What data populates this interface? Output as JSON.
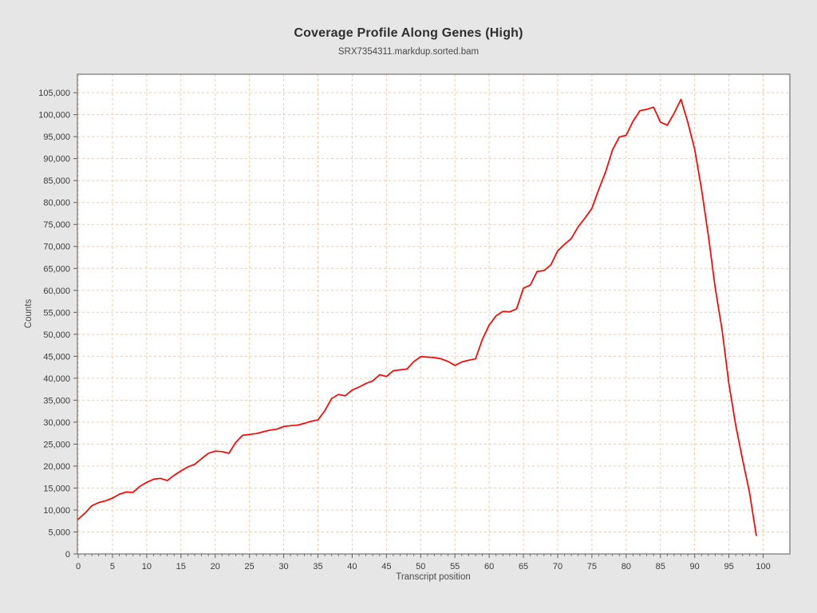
{
  "page": {
    "background": "#e6e6e6"
  },
  "header": {
    "title": "Coverage Profile Along Genes (High)",
    "subtitle": "SRX7354311.markdup.sorted.bam"
  },
  "chart_data": {
    "type": "line",
    "title": "Coverage Profile Along Genes (High)",
    "subtitle": "SRX7354311.markdup.sorted.bam",
    "xlabel": "Transcript position",
    "ylabel": "Counts",
    "legend": "none",
    "grid": "dashed",
    "x_start": 0,
    "x_step": 1,
    "x": [
      0,
      1,
      2,
      3,
      4,
      5,
      6,
      7,
      8,
      9,
      10,
      11,
      12,
      13,
      14,
      15,
      16,
      17,
      18,
      19,
      20,
      21,
      22,
      23,
      24,
      25,
      26,
      27,
      28,
      29,
      30,
      31,
      32,
      33,
      34,
      35,
      36,
      37,
      38,
      39,
      40,
      41,
      42,
      43,
      44,
      45,
      46,
      47,
      48,
      49,
      50,
      51,
      52,
      53,
      54,
      55,
      56,
      57,
      58,
      59,
      60,
      61,
      62,
      63,
      64,
      65,
      66,
      67,
      68,
      69,
      70,
      71,
      72,
      73,
      74,
      75,
      76,
      77,
      78,
      79,
      80,
      81,
      82,
      83,
      84,
      85,
      86,
      87,
      88,
      89,
      90,
      91,
      92,
      93,
      94,
      95,
      96,
      97,
      98,
      99
    ],
    "values": [
      7900,
      9300,
      11000,
      11700,
      12100,
      12700,
      13600,
      14100,
      14000,
      15400,
      16300,
      17000,
      17200,
      16700,
      17900,
      18900,
      19800,
      20400,
      21700,
      22900,
      23400,
      23300,
      22900,
      25400,
      27000,
      27200,
      27400,
      27800,
      28200,
      28400,
      29000,
      29200,
      29300,
      29700,
      30200,
      30500,
      32600,
      35400,
      36300,
      36000,
      37300,
      38000,
      38800,
      39400,
      40800,
      40400,
      41700,
      41900,
      42100,
      43800,
      44900,
      44800,
      44700,
      44400,
      43800,
      42900,
      43700,
      44100,
      44400,
      48800,
      52100,
      54200,
      55200,
      55100,
      55800,
      60500,
      61200,
      64300,
      64500,
      65800,
      69000,
      70500,
      71800,
      74500,
      76500,
      78700,
      83000,
      87000,
      92000,
      94900,
      95300,
      98500,
      100900,
      101200,
      101700,
      98300,
      97600,
      100300,
      103500,
      98200,
      92100,
      83000,
      72500,
      60600,
      51000,
      38700,
      29200,
      21400,
      14100,
      4200
    ],
    "xlim": [
      -0.12,
      103.9
    ],
    "ylim": [
      0,
      109200
    ],
    "x_tick_max": 100,
    "x_major_tick_step": 5,
    "x_minor_tick_step": 1,
    "y_tick_max": 105000,
    "y_major_tick_step": 5000,
    "y_tick_labels": [
      "0",
      "5,000",
      "10,000",
      "15,000",
      "20,000",
      "25,000",
      "30,000",
      "35,000",
      "40,000",
      "45,000",
      "50,000",
      "55,000",
      "60,000",
      "65,000",
      "70,000",
      "75,000",
      "80,000",
      "85,000",
      "90,000",
      "95,000",
      "100,000",
      "105,000"
    ],
    "colors": {
      "line": "#ff0000",
      "grid": "#f5c9a2",
      "plot_bg": "#ffffff",
      "fig_bg": "#e6e6e6",
      "spine": "#7d7d7d",
      "tick": "#5e5e5e",
      "tick_label": "#3c3c3c",
      "title": "#2e2e2e",
      "subtitle": "#4a4a4a"
    }
  }
}
